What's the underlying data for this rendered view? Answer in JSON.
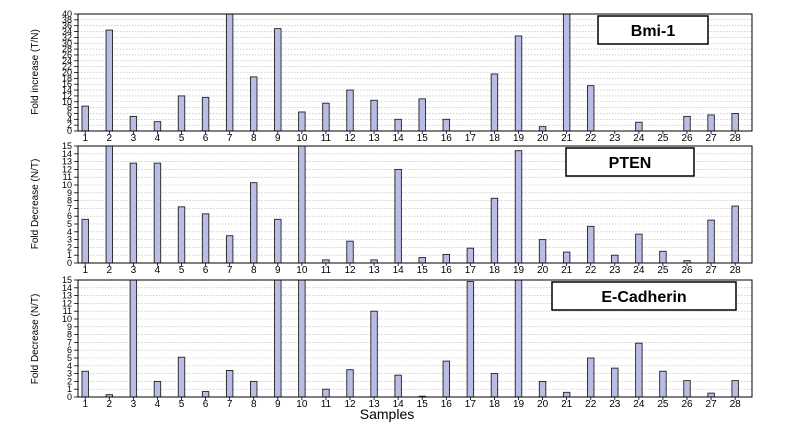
{
  "chart_data": [
    {
      "type": "bar",
      "title": "Bmi-1",
      "ylabel": "Fold increase (T/N)",
      "xlabel": "",
      "categories": [
        "1",
        "2",
        "3",
        "4",
        "5",
        "6",
        "7",
        "8",
        "9",
        "10",
        "11",
        "12",
        "13",
        "14",
        "15",
        "16",
        "17",
        "18",
        "19",
        "20",
        "21",
        "22",
        "23",
        "24",
        "25",
        "26",
        "27",
        "28"
      ],
      "values": [
        8.5,
        34.5,
        5,
        3.2,
        12,
        11.5,
        40,
        18.5,
        35,
        6.5,
        9.5,
        14,
        10.5,
        4,
        11,
        4,
        0,
        19.5,
        32.5,
        1.5,
        40,
        15.5,
        0,
        3,
        0,
        5,
        5.5,
        6
      ],
      "yticks": [
        0,
        2,
        4,
        6,
        8,
        10,
        12,
        14,
        16,
        18,
        20,
        22,
        24,
        26,
        28,
        30,
        32,
        34,
        36,
        38,
        40
      ],
      "ylim": [
        0,
        40
      ],
      "grid": true,
      "bar_color": "#b9bde6"
    },
    {
      "type": "bar",
      "title": "PTEN",
      "ylabel": "Fold Decrease (N/T)",
      "xlabel": "",
      "categories": [
        "1",
        "2",
        "3",
        "4",
        "5",
        "6",
        "7",
        "8",
        "9",
        "10",
        "11",
        "12",
        "13",
        "14",
        "15",
        "16",
        "17",
        "18",
        "19",
        "20",
        "21",
        "22",
        "23",
        "24",
        "25",
        "26",
        "27",
        "28"
      ],
      "values": [
        5.6,
        15,
        12.8,
        12.8,
        7.2,
        6.3,
        3.5,
        10.3,
        5.6,
        15,
        0.4,
        2.8,
        0.4,
        12,
        0.7,
        1.1,
        1.9,
        8.3,
        14.4,
        3,
        1.4,
        4.7,
        1,
        3.7,
        1.5,
        0.3,
        5.5,
        7.3
      ],
      "yticks": [
        0,
        1,
        2,
        3,
        4,
        5,
        6,
        7,
        8,
        9,
        10,
        11,
        12,
        13,
        14,
        15
      ],
      "ylim": [
        0,
        15
      ],
      "grid": true,
      "bar_color": "#b9bde6"
    },
    {
      "type": "bar",
      "title": "E-Cadherin",
      "ylabel": "Fold Decrease (N/T)",
      "xlabel": "Samples",
      "categories": [
        "1",
        "2",
        "3",
        "4",
        "5",
        "6",
        "7",
        "8",
        "9",
        "10",
        "11",
        "12",
        "13",
        "14",
        "15",
        "16",
        "17",
        "18",
        "19",
        "20",
        "21",
        "22",
        "23",
        "24",
        "25",
        "26",
        "27",
        "28"
      ],
      "values": [
        3.3,
        0.3,
        15,
        2,
        5.1,
        0.7,
        3.4,
        2,
        15,
        15,
        1,
        3.5,
        11,
        2.8,
        0.1,
        4.6,
        14.8,
        3,
        15,
        2,
        0.6,
        5,
        3.7,
        6.9,
        3.3,
        2.1,
        0.5,
        2.1
      ],
      "yticks": [
        0,
        1,
        2,
        3,
        4,
        5,
        6,
        7,
        8,
        9,
        10,
        11,
        12,
        13,
        14,
        15
      ],
      "ylim": [
        0,
        15
      ],
      "grid": true,
      "bar_color": "#b9bde6"
    }
  ]
}
